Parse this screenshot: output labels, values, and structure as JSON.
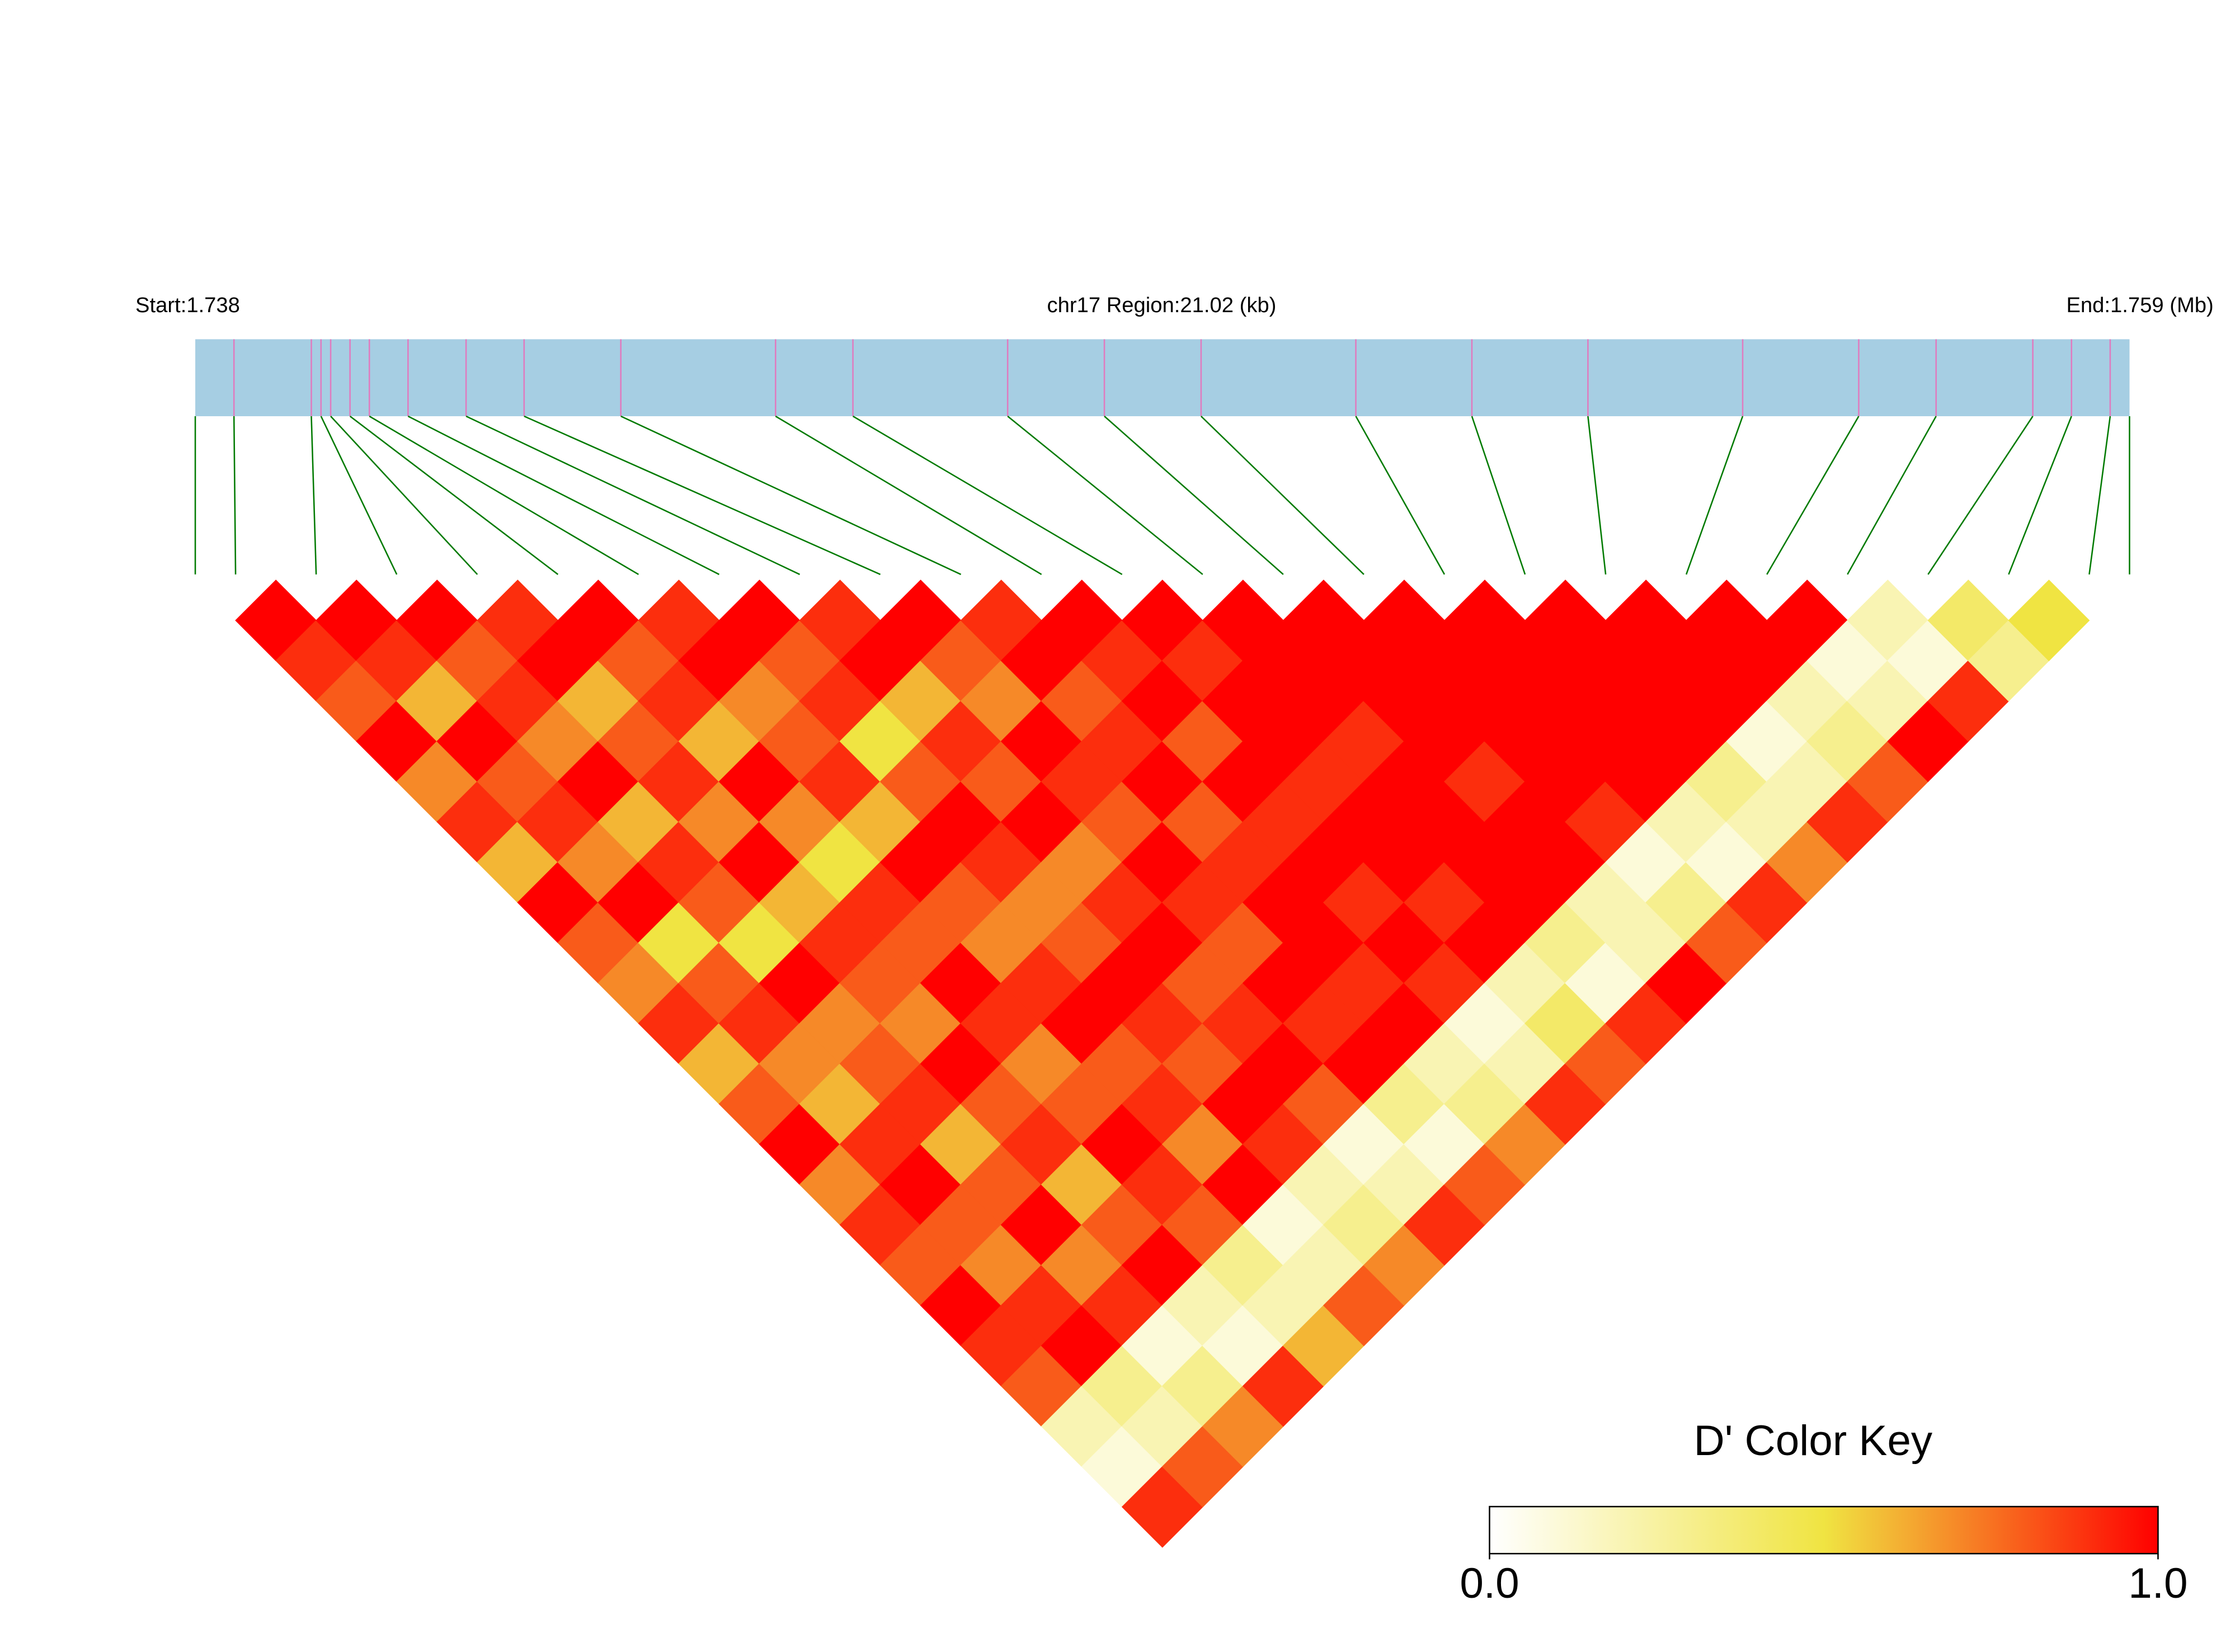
{
  "chart_data": {
    "type": "ld-heatmap",
    "start_label": "Start:1.738",
    "region_label": "chr17 Region:21.02 (kb)",
    "end_label": "End:1.759 (Mb)",
    "xlim": [
      1.738,
      1.759
    ],
    "snp_positions": [
      1.73842,
      1.73926,
      1.739365,
      1.73947,
      1.73968,
      1.73989,
      1.74031,
      1.74094,
      1.74157,
      1.74262,
      1.7443,
      1.74514,
      1.74682,
      1.74787,
      1.74892,
      1.7506,
      1.75186,
      1.75312,
      1.7548,
      1.75606,
      1.7569,
      1.75795,
      1.75837,
      1.75879
    ],
    "dprime": [
      [
        1,
        0.9,
        0.8,
        1,
        0.7,
        0.9,
        0.6,
        1,
        0.8,
        0.7,
        0.9,
        0.6,
        0.8,
        1,
        0.7,
        0.9,
        0.8,
        1,
        0.9,
        0.8,
        0.2,
        0.1,
        0.9
      ],
      [
        1,
        0.9,
        0.6,
        1,
        0.8,
        0.9,
        0.7,
        1,
        0.5,
        0.8,
        0.9,
        0.7,
        0.6,
        0.9,
        1,
        0.8,
        0.7,
        0.9,
        1,
        0.3,
        0.2,
        0.8
      ],
      [
        1,
        0.8,
        0.9,
        0.7,
        1,
        0.6,
        0.9,
        0.8,
        0.5,
        1,
        0.7,
        0.8,
        0.9,
        0.6,
        0.8,
        1,
        0.7,
        0.9,
        0.1,
        0.3,
        0.7
      ],
      [
        0.9,
        1,
        0.6,
        0.8,
        0.9,
        0.7,
        1,
        0.6,
        0.9,
        0.8,
        0.7,
        1,
        0.8,
        0.9,
        0.6,
        0.8,
        1,
        0.2,
        0.1,
        0.9
      ],
      [
        1,
        0.8,
        0.9,
        0.6,
        1,
        0.7,
        0.5,
        0.9,
        0.8,
        1,
        0.9,
        0.7,
        0.8,
        1,
        0.9,
        0.8,
        0.3,
        0.2,
        0.6
      ],
      [
        0.9,
        1,
        0.7,
        0.8,
        0.9,
        0.6,
        1,
        0.8,
        0.7,
        0.9,
        1,
        0.8,
        0.9,
        0.7,
        1,
        0.1,
        0.2,
        0.8
      ],
      [
        1,
        0.8,
        0.9,
        0.5,
        0.8,
        1,
        0.9,
        0.7,
        0.8,
        1,
        0.9,
        0.8,
        1,
        0.9,
        0.2,
        0.3,
        0.7
      ],
      [
        0.9,
        1,
        0.6,
        0.9,
        0.8,
        1,
        0.7,
        0.9,
        1,
        0.8,
        0.9,
        1,
        0.8,
        0.1,
        0.2,
        0.9
      ],
      [
        1,
        0.8,
        0.7,
        1,
        0.9,
        0.8,
        1,
        0.9,
        0.8,
        1,
        0.9,
        1,
        0.3,
        0.1,
        0.8
      ],
      [
        0.9,
        1,
        0.8,
        0.9,
        1,
        0.8,
        0.9,
        1,
        1,
        0.9,
        1,
        0.2,
        0.3,
        0.7
      ],
      [
        1,
        0.9,
        1,
        0.8,
        1,
        0.9,
        1,
        0.9,
        1,
        0.9,
        0.1,
        0.2,
        0.9
      ],
      [
        1,
        0.9,
        1,
        1,
        0.9,
        1,
        1,
        0.9,
        1,
        0.2,
        0.4,
        0.8
      ],
      [
        1,
        1,
        1,
        0.9,
        1,
        1,
        1,
        1,
        0.3,
        0.1,
        0.9
      ],
      [
        1,
        1,
        1,
        1,
        0.9,
        1,
        1,
        0.2,
        0.2,
        1
      ],
      [
        1,
        1,
        1,
        1,
        1,
        0.9,
        0.1,
        0.3,
        0.8
      ],
      [
        1,
        1,
        1,
        1,
        1,
        0.2,
        0.1,
        0.9
      ],
      [
        1,
        1,
        1,
        1,
        0.3,
        0.2,
        0.7
      ],
      [
        1,
        1,
        1,
        0.1,
        0.2,
        0.9
      ],
      [
        1,
        1,
        0.2,
        0.3,
        0.8
      ],
      [
        1,
        0.1,
        0.2,
        1
      ],
      [
        0.2,
        0.1,
        0.9
      ],
      [
        0.4,
        0.3
      ],
      [
        0.5
      ]
    ],
    "colorbar_title": "D' Color Key",
    "colorbar_lim": [
      0,
      1
    ],
    "colorbar_ticks": [
      {
        "value": 0,
        "label": "0.0"
      },
      {
        "value": 1,
        "label": "1.0"
      }
    ],
    "colors": [
      "#ffffff",
      "#f0e442",
      "#ff0000"
    ],
    "bar_color": "#a6cee3",
    "snp_tick_color": "#e07bbf",
    "link_color": "#007a00"
  }
}
